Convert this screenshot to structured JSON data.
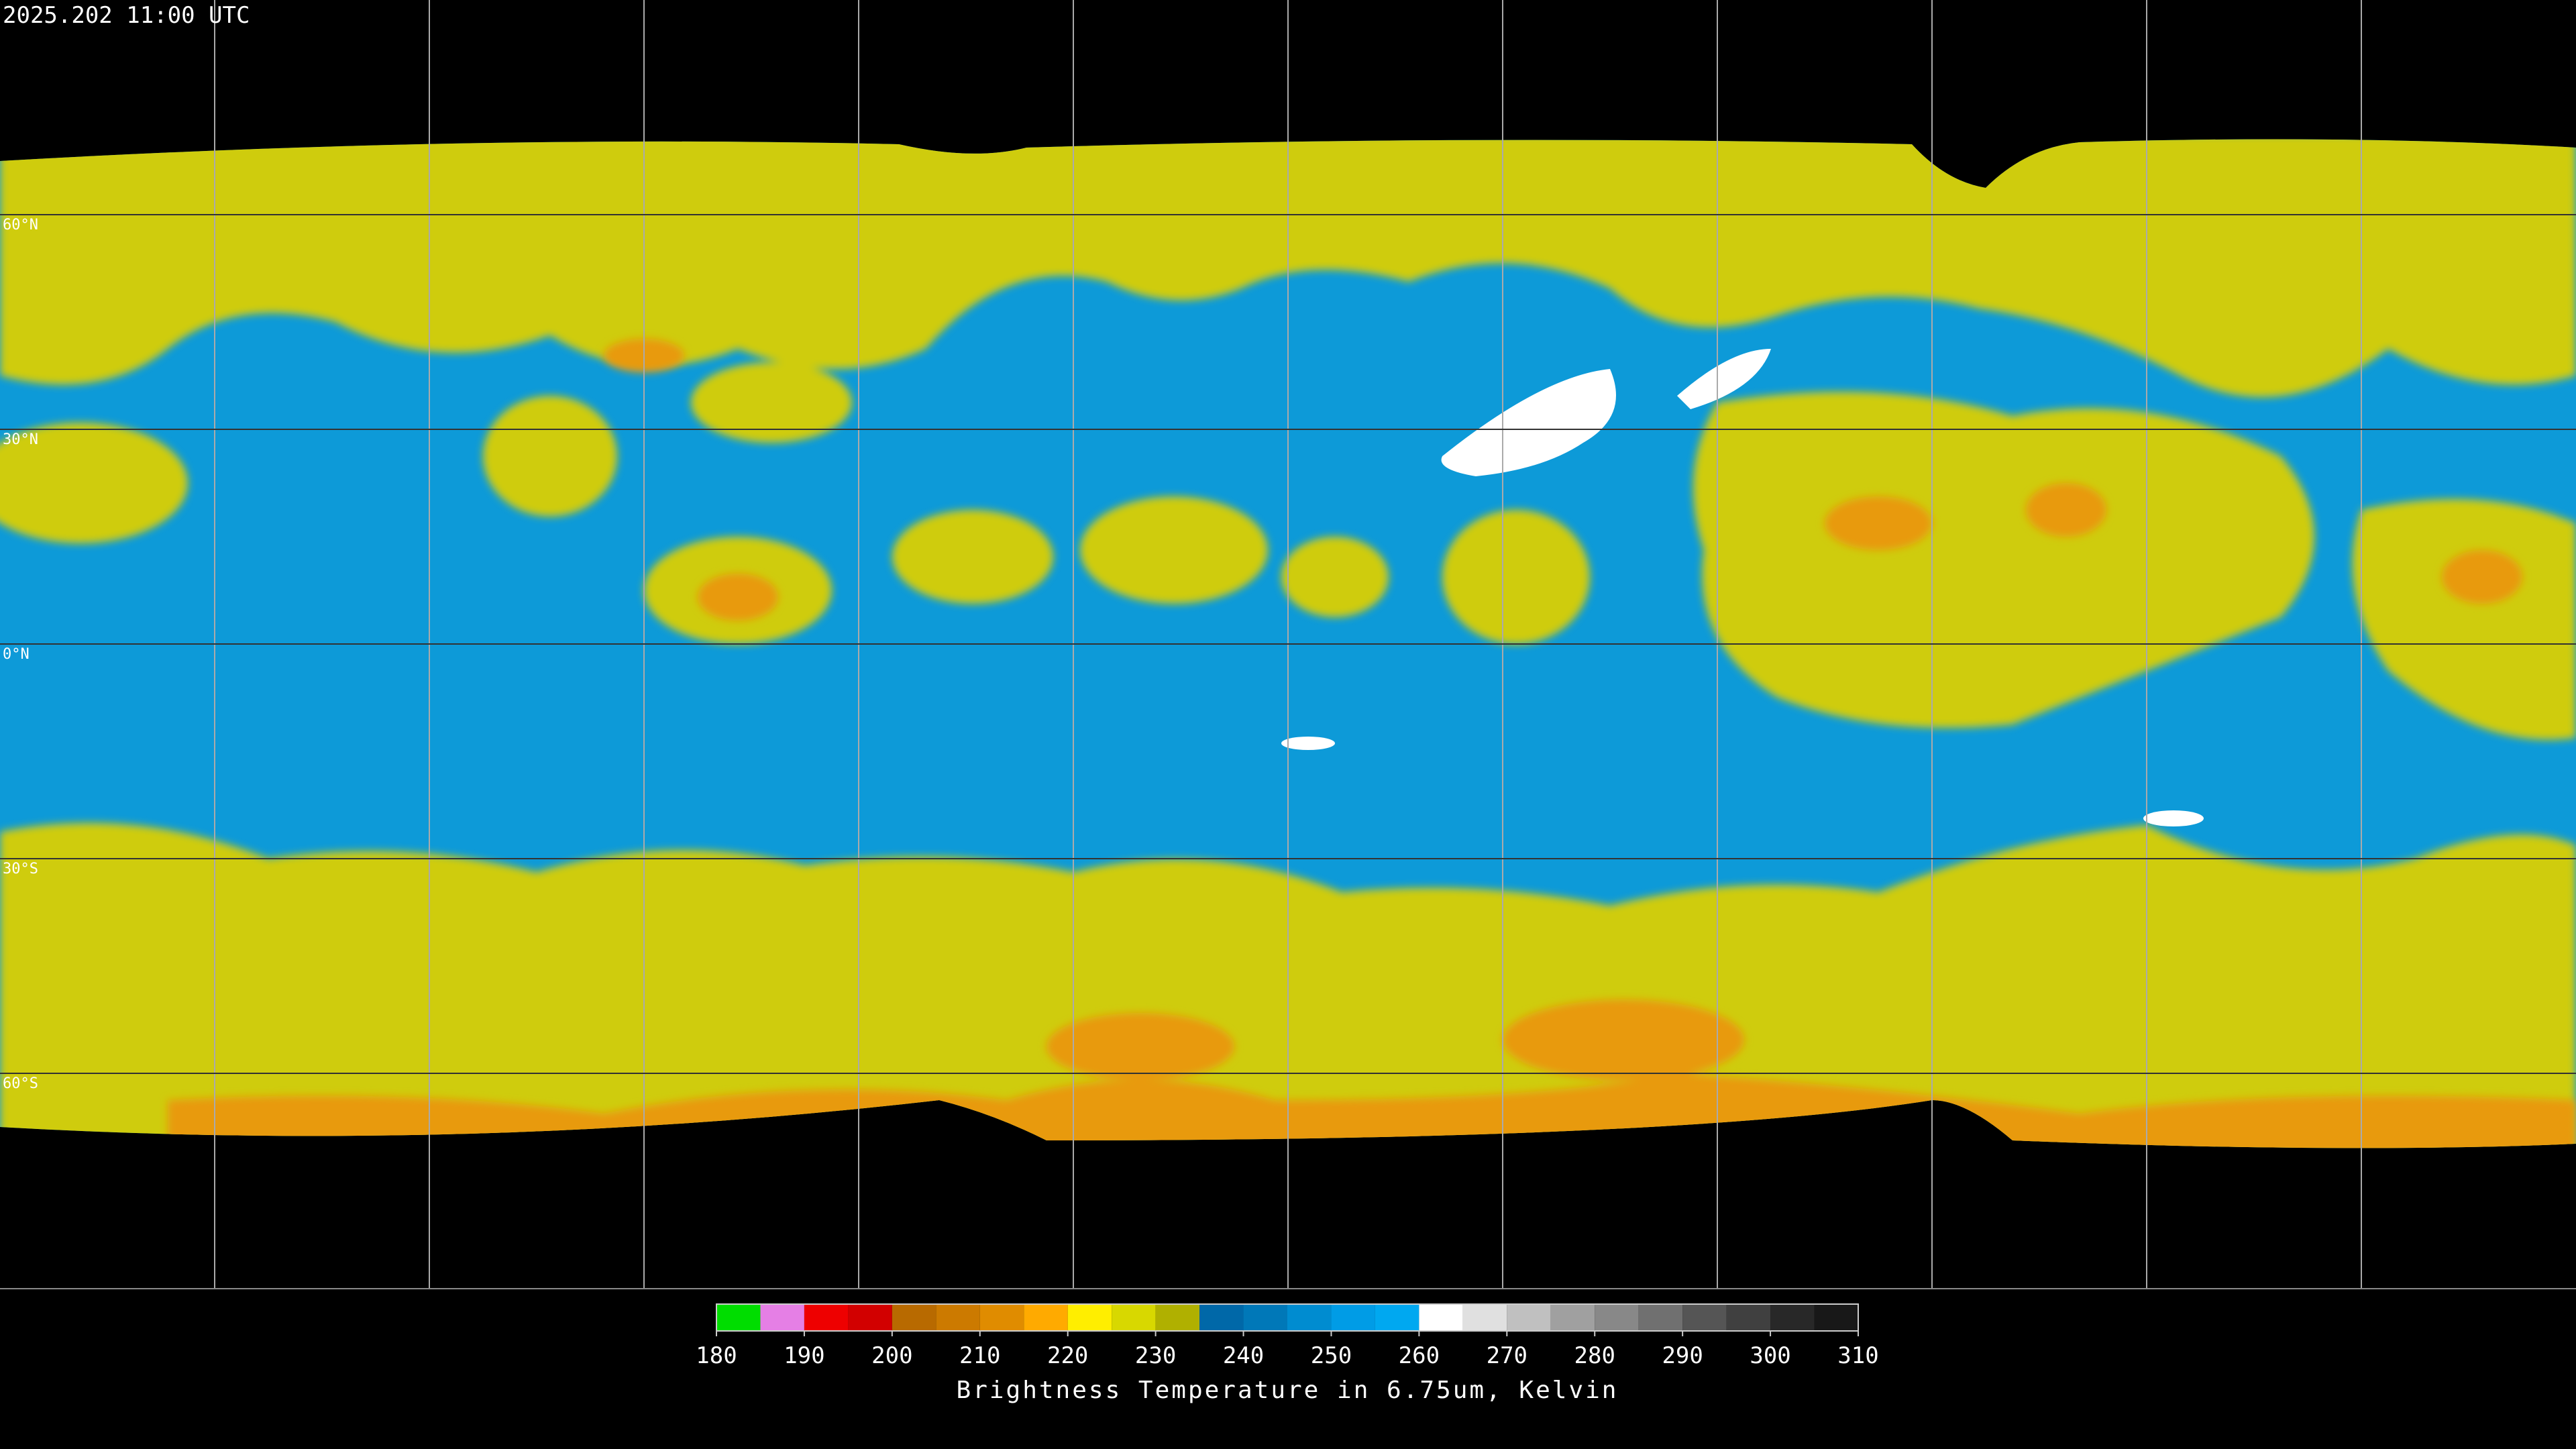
{
  "header": {
    "timestamp": "2025.202 11:00 UTC"
  },
  "map": {
    "lonlim": [
      -180,
      180
    ],
    "latlim": [
      -90,
      90
    ],
    "longitudes": [
      -150,
      -120,
      -90,
      -60,
      -30,
      0,
      30,
      60,
      90,
      120,
      150
    ],
    "latitudes": [
      {
        "value": 60,
        "label": "60°N"
      },
      {
        "value": 30,
        "label": "30°N"
      },
      {
        "value": 0,
        "label": "0°N"
      },
      {
        "value": -30,
        "label": "30°S"
      },
      {
        "value": -60,
        "label": "60°S"
      }
    ]
  },
  "colorbar": {
    "label": "Brightness Temperature in 6.75um, Kelvin",
    "lim": [
      180,
      310
    ],
    "ticks": [
      180,
      190,
      200,
      210,
      220,
      230,
      240,
      250,
      260,
      270,
      280,
      290,
      300,
      310
    ],
    "segments": [
      {
        "from": 180,
        "to": 185,
        "color": "#00dd00"
      },
      {
        "from": 185,
        "to": 190,
        "color": "#e57fe5"
      },
      {
        "from": 190,
        "to": 195,
        "color": "#ee0000"
      },
      {
        "from": 195,
        "to": 200,
        "color": "#d20000"
      },
      {
        "from": 200,
        "to": 205,
        "color": "#b86a00"
      },
      {
        "from": 205,
        "to": 210,
        "color": "#cc7a00"
      },
      {
        "from": 210,
        "to": 215,
        "color": "#e08c00"
      },
      {
        "from": 215,
        "to": 220,
        "color": "#ffaa00"
      },
      {
        "from": 220,
        "to": 225,
        "color": "#ffee00"
      },
      {
        "from": 225,
        "to": 230,
        "color": "#d8d800"
      },
      {
        "from": 230,
        "to": 235,
        "color": "#b0b000"
      },
      {
        "from": 235,
        "to": 240,
        "color": "#0068a8"
      },
      {
        "from": 240,
        "to": 245,
        "color": "#0078b8"
      },
      {
        "from": 245,
        "to": 250,
        "color": "#008cd0"
      },
      {
        "from": 250,
        "to": 255,
        "color": "#009ce6"
      },
      {
        "from": 255,
        "to": 260,
        "color": "#00a8f0"
      },
      {
        "from": 260,
        "to": 265,
        "color": "#ffffff"
      },
      {
        "from": 265,
        "to": 270,
        "color": "#e0e0e0"
      },
      {
        "from": 270,
        "to": 275,
        "color": "#c0c0c0"
      },
      {
        "from": 275,
        "to": 280,
        "color": "#a0a0a0"
      },
      {
        "from": 280,
        "to": 285,
        "color": "#888888"
      },
      {
        "from": 285,
        "to": 290,
        "color": "#707070"
      },
      {
        "from": 290,
        "to": 295,
        "color": "#555555"
      },
      {
        "from": 295,
        "to": 300,
        "color": "#404040"
      },
      {
        "from": 300,
        "to": 305,
        "color": "#282828"
      },
      {
        "from": 305,
        "to": 310,
        "color": "#181818"
      }
    ]
  }
}
